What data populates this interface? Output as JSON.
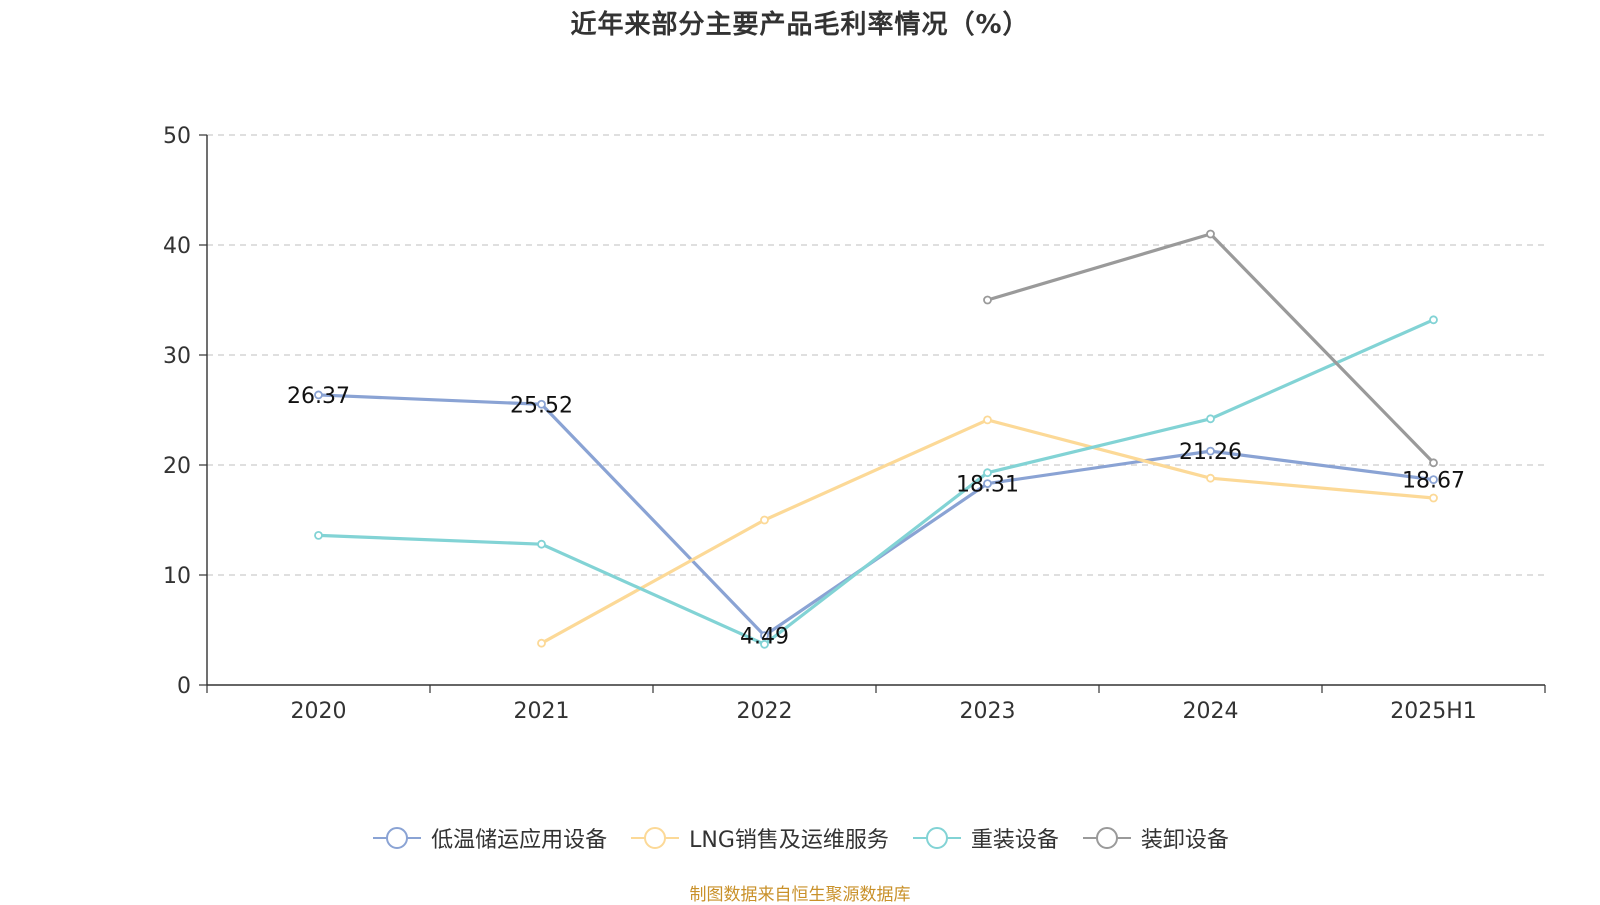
{
  "chart_data": {
    "type": "line",
    "title": "近年来部分主要产品毛利率情况（%）",
    "categories": [
      "2020",
      "2021",
      "2022",
      "2023",
      "2024",
      "2025H1"
    ],
    "ylim": [
      0,
      50
    ],
    "yticks": [
      0,
      10,
      20,
      30,
      40,
      50
    ],
    "grid": true,
    "legend_position": "bottom",
    "series": [
      {
        "name": "低温储运应用设备",
        "color": "#8aa3d4",
        "values": [
          26.37,
          25.52,
          4.49,
          18.31,
          21.26,
          18.67
        ],
        "labels": [
          "26.37",
          "25.52",
          "4.49",
          "18.31",
          "21.26",
          "18.67"
        ]
      },
      {
        "name": "LNG销售及运维服务",
        "color": "#fcd997",
        "values": [
          null,
          3.8,
          15.0,
          24.1,
          18.8,
          17.0
        ]
      },
      {
        "name": "重装设备",
        "color": "#82d3d5",
        "values": [
          13.6,
          12.8,
          3.7,
          19.3,
          24.2,
          33.2
        ]
      },
      {
        "name": "装卸设备",
        "color": "#9a9a9a",
        "values": [
          null,
          null,
          null,
          35.0,
          41.0,
          20.2
        ]
      }
    ]
  },
  "source_text": "制图数据来自恒生聚源数据库"
}
